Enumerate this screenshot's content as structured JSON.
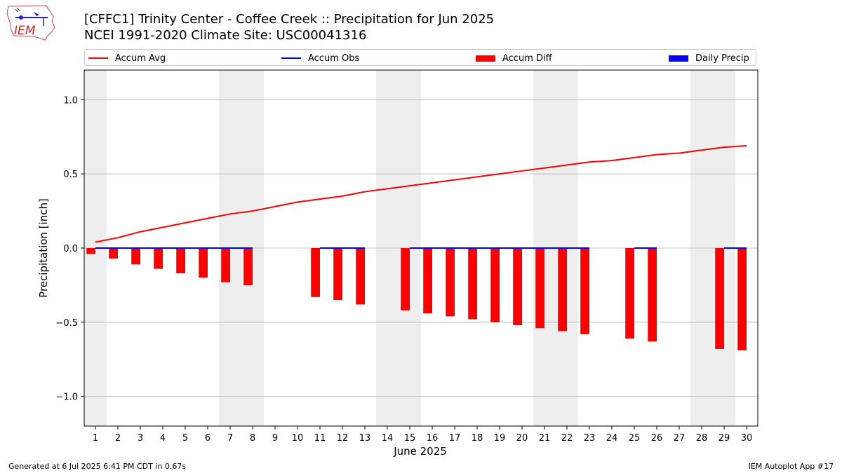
{
  "header": {
    "title_line1": "[CFFC1] Trinity Center - Coffee Creek :: Precipitation for Jun 2025",
    "title_line2": "NCEI 1991-2020 Climate Site: USC00041316",
    "logo_text": "IEM"
  },
  "legend": {
    "items": [
      {
        "label": "Accum Avg",
        "color": "#ff0000",
        "kind": "line"
      },
      {
        "label": "Accum Obs",
        "color": "#0000ff",
        "kind": "line"
      },
      {
        "label": "Accum Diff",
        "color": "#ff0000",
        "kind": "box"
      },
      {
        "label": "Daily Precip",
        "color": "#0000ff",
        "kind": "box"
      }
    ]
  },
  "footer": {
    "left": "Generated at 6 Jul 2025 6:41 PM CDT in 0.67s",
    "right": "IEM Autoplot App #17"
  },
  "chart_data": {
    "type": "bar",
    "xlabel": "June 2025",
    "ylabel": "Precipitation [inch]",
    "ylim": [
      -1.2,
      1.2
    ],
    "xlim": [
      0.5,
      30.5
    ],
    "yticks": [
      -1.0,
      -0.5,
      0.0,
      0.5,
      1.0
    ],
    "ytick_labels": [
      "−1.0",
      "−0.5",
      "0.0",
      "0.5",
      "1.0"
    ],
    "categories": [
      "1",
      "2",
      "3",
      "4",
      "5",
      "6",
      "7",
      "8",
      "9",
      "10",
      "11",
      "12",
      "13",
      "14",
      "15",
      "16",
      "17",
      "18",
      "19",
      "20",
      "21",
      "22",
      "23",
      "24",
      "25",
      "26",
      "27",
      "28",
      "29",
      "30"
    ],
    "weekend_days": [
      1,
      7,
      8,
      14,
      15,
      21,
      22,
      28,
      29
    ],
    "grid": true,
    "legend_position": "top",
    "series": [
      {
        "name": "Accum Avg",
        "kind": "line",
        "color": "#ff0000",
        "values": [
          0.04,
          0.07,
          0.11,
          0.14,
          0.17,
          0.2,
          0.23,
          0.25,
          0.28,
          0.31,
          0.33,
          0.35,
          0.38,
          0.4,
          0.42,
          0.44,
          0.46,
          0.48,
          0.5,
          0.52,
          0.54,
          0.56,
          0.58,
          0.59,
          0.61,
          0.63,
          0.64,
          0.66,
          0.68,
          0.69
        ]
      },
      {
        "name": "Accum Obs",
        "kind": "line",
        "color": "#0000ff",
        "values": [
          0,
          0,
          0,
          0,
          0,
          0,
          0,
          0,
          null,
          null,
          0,
          0,
          0,
          null,
          0,
          0,
          0,
          0,
          0,
          0,
          0,
          0,
          0,
          null,
          0,
          0,
          null,
          null,
          0,
          0
        ]
      },
      {
        "name": "Accum Diff",
        "kind": "bar",
        "color": "#ff0000",
        "values": [
          -0.04,
          -0.07,
          -0.11,
          -0.14,
          -0.17,
          -0.2,
          -0.23,
          -0.25,
          null,
          null,
          -0.33,
          -0.35,
          -0.38,
          null,
          -0.42,
          -0.44,
          -0.46,
          -0.48,
          -0.5,
          -0.52,
          -0.54,
          -0.56,
          -0.58,
          null,
          -0.61,
          -0.63,
          null,
          null,
          -0.68,
          -0.69
        ]
      },
      {
        "name": "Daily Precip",
        "kind": "bar",
        "color": "#0000ff",
        "values": [
          0,
          0,
          0,
          0,
          0,
          0,
          0,
          0,
          null,
          null,
          0,
          0,
          0,
          null,
          0,
          0,
          0,
          0,
          0,
          0,
          0,
          0,
          0,
          null,
          0,
          0,
          null,
          null,
          0,
          0
        ]
      }
    ]
  }
}
